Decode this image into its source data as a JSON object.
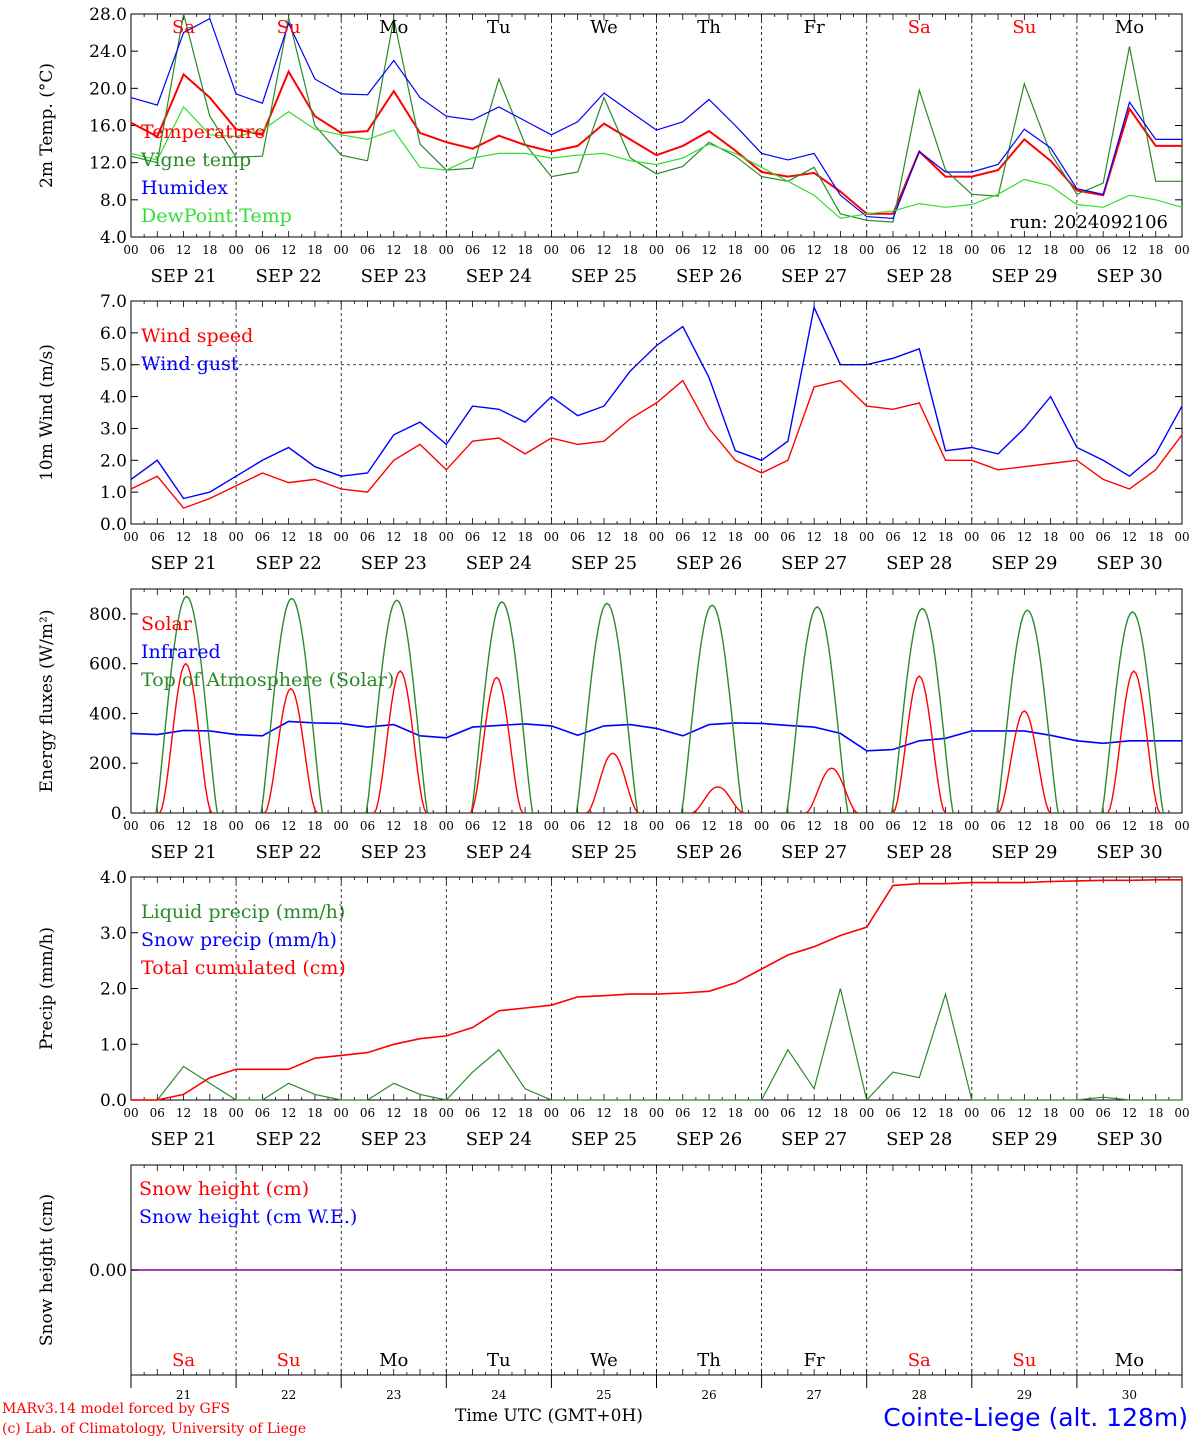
{
  "colors": {
    "red": "#ff0000",
    "green": "#2a8a2a",
    "blue": "#0000ff",
    "light_green": "#33dd33",
    "purple": "#8800aa",
    "axis": "#000000"
  },
  "days": [
    "SEP 21",
    "SEP 22",
    "SEP 23",
    "SEP 24",
    "SEP 25",
    "SEP 26",
    "SEP 27",
    "SEP 28",
    "SEP 29",
    "SEP 30"
  ],
  "hour_ticks": [
    "00",
    "06",
    "12",
    "18"
  ],
  "weekdays": [
    {
      "label": "Sa",
      "weekend": true
    },
    {
      "label": "Su",
      "weekend": true
    },
    {
      "label": "Mo",
      "weekend": false
    },
    {
      "label": "Tu",
      "weekend": false
    },
    {
      "label": "We",
      "weekend": false
    },
    {
      "label": "Th",
      "weekend": false
    },
    {
      "label": "Fr",
      "weekend": false
    },
    {
      "label": "Sa",
      "weekend": true
    },
    {
      "label": "Su",
      "weekend": true
    },
    {
      "label": "Mo",
      "weekend": false
    }
  ],
  "day_numbers": [
    "21",
    "22",
    "23",
    "24",
    "25",
    "26",
    "27",
    "28",
    "29",
    "30"
  ],
  "footer": {
    "model_line": "MARv3.14 model forced by GFS",
    "copyright": "(c) Lab. of Climatology, University of Liege",
    "xlabel": "Time UTC (GMT+0H)",
    "station": "Cointe-Liege (alt. 128m)"
  },
  "chart_data": [
    {
      "type": "line",
      "ylabel": "2m Temp. (°C)",
      "ylim": [
        4.0,
        28.0
      ],
      "yticks": [
        "4.0",
        "8.0",
        "12.0",
        "16.0",
        "20.0",
        "24.0",
        "28.0"
      ],
      "annotation": "run: 2024092106",
      "x_step_hours": 6,
      "series": [
        {
          "name": "Temperature",
          "color": "#ff0000",
          "values": [
            16.3,
            14.8,
            21.5,
            19.0,
            15.6,
            15.0,
            21.8,
            17.0,
            15.2,
            15.4,
            19.7,
            15.2,
            14.2,
            13.5,
            14.9,
            13.9,
            13.2,
            13.8,
            16.2,
            14.5,
            12.8,
            13.8,
            15.4,
            13.3,
            11.0,
            10.5,
            10.9,
            8.9,
            6.5,
            6.5,
            13.2,
            10.5,
            10.5,
            11.2,
            14.5,
            12.2,
            9.0,
            8.5,
            17.8,
            13.8,
            13.8
          ]
        },
        {
          "name": "Vigne temp",
          "color": "#2a8a2a",
          "values": [
            12.7,
            12.0,
            28.0,
            17.0,
            12.6,
            12.7,
            27.6,
            16.0,
            12.8,
            12.2,
            27.5,
            14.0,
            11.2,
            11.4,
            21.0,
            14.0,
            10.5,
            11.0,
            19.0,
            12.5,
            10.8,
            11.6,
            14.2,
            12.7,
            10.5,
            10.0,
            11.5,
            6.5,
            5.8,
            5.6,
            19.8,
            11.2,
            8.6,
            8.4,
            20.5,
            13.0,
            8.6,
            9.8,
            24.5,
            10.0,
            10.0
          ]
        },
        {
          "name": "Humidex",
          "color": "#0000ff",
          "values": [
            19.0,
            18.2,
            26.0,
            27.5,
            19.4,
            18.4,
            27.0,
            21.0,
            19.4,
            19.3,
            23.0,
            19.0,
            17.0,
            16.6,
            18.0,
            16.5,
            15.0,
            16.4,
            19.5,
            17.5,
            15.5,
            16.4,
            18.8,
            16.0,
            13.0,
            12.3,
            13.0,
            8.5,
            6.2,
            6.0,
            13.2,
            11.0,
            11.0,
            11.8,
            15.6,
            13.6,
            9.2,
            8.6,
            18.5,
            14.5,
            14.5
          ]
        },
        {
          "name": "DewPoint Temp",
          "color": "#33dd33",
          "values": [
            13.0,
            12.3,
            18.0,
            15.0,
            14.8,
            15.5,
            17.5,
            15.6,
            15.0,
            14.5,
            15.5,
            11.5,
            11.2,
            12.5,
            13.0,
            13.0,
            12.5,
            12.8,
            13.0,
            12.2,
            11.8,
            12.5,
            14.0,
            13.0,
            11.5,
            10.0,
            8.5,
            6.0,
            6.5,
            6.8,
            7.6,
            7.2,
            7.5,
            8.6,
            10.2,
            9.5,
            7.5,
            7.2,
            8.5,
            8.0,
            7.2
          ]
        }
      ]
    },
    {
      "type": "line",
      "ylabel": "10m Wind (m/s)",
      "ylim": [
        0.0,
        7.0
      ],
      "yticks": [
        "0.0",
        "1.0",
        "2.0",
        "3.0",
        "4.0",
        "5.0",
        "6.0",
        "7.0"
      ],
      "x_step_hours": 6,
      "series": [
        {
          "name": "Wind speed",
          "color": "#ff0000",
          "values": [
            1.1,
            1.5,
            0.5,
            0.8,
            1.2,
            1.6,
            1.3,
            1.4,
            1.1,
            1.0,
            2.0,
            2.5,
            1.7,
            2.6,
            2.7,
            2.2,
            2.7,
            2.5,
            2.6,
            3.3,
            3.8,
            4.5,
            3.0,
            2.0,
            1.6,
            2.0,
            4.3,
            4.5,
            3.7,
            3.6,
            3.8,
            2.0,
            2.0,
            1.7,
            1.8,
            1.9,
            2.0,
            1.4,
            1.1,
            1.7,
            2.8
          ]
        },
        {
          "name": "Wind gust",
          "color": "#0000ff",
          "values": [
            1.4,
            2.0,
            0.8,
            1.0,
            1.5,
            2.0,
            2.4,
            1.8,
            1.5,
            1.6,
            2.8,
            3.2,
            2.5,
            3.7,
            3.6,
            3.2,
            4.0,
            3.4,
            3.7,
            4.8,
            5.6,
            6.2,
            4.6,
            2.3,
            2.0,
            2.6,
            6.8,
            5.0,
            5.0,
            5.2,
            5.5,
            2.3,
            2.4,
            2.2,
            3.0,
            4.0,
            2.4,
            2.0,
            1.5,
            2.2,
            3.7
          ]
        },
        {
          "name": "",
          "color": "#000000",
          "dashed": true,
          "values": [
            5.0,
            5.0
          ]
        }
      ]
    },
    {
      "type": "line",
      "ylabel": "Energy fluxes (W/m²)",
      "ylim": [
        0,
        900
      ],
      "yticks": [
        "0.",
        "200.",
        "400.",
        "600.",
        "800."
      ],
      "series": [
        {
          "name": "Solar",
          "color": "#ff0000",
          "peaks": [
            [
              12.5,
              600
            ],
            [
              12.5,
              500
            ],
            [
              13.5,
              570
            ],
            [
              11.5,
              545
            ],
            [
              14,
              240
            ],
            [
              14,
              105
            ],
            [
              16,
              180
            ],
            [
              12,
              550
            ],
            [
              12,
              410
            ],
            [
              13,
              570
            ]
          ]
        },
        {
          "name": "Infrared",
          "color": "#0000ff",
          "values": [
            320,
            315,
            332,
            330,
            315,
            310,
            368,
            362,
            360,
            345,
            355,
            310,
            302,
            345,
            352,
            358,
            350,
            312,
            350,
            355,
            340,
            310,
            355,
            362,
            360,
            352,
            345,
            320,
            250,
            255,
            290,
            300,
            330,
            330,
            330,
            312,
            290,
            280,
            290,
            290,
            290
          ]
        },
        {
          "name": "Top of Atmosphere (Solar)",
          "color": "#2a8a2a",
          "peaks": [
            [
              12.7,
              870
            ],
            [
              12.7,
              862
            ],
            [
              12.7,
              855
            ],
            [
              12.7,
              848
            ],
            [
              12.7,
              842
            ],
            [
              12.7,
              835
            ],
            [
              12.7,
              828
            ],
            [
              12.7,
              822
            ],
            [
              12.7,
              815
            ],
            [
              12.7,
              808
            ]
          ]
        }
      ]
    },
    {
      "type": "line",
      "ylabel": "Precip (mm/h)",
      "ylim": [
        0.0,
        4.0
      ],
      "yticks": [
        "0.0",
        "1.0",
        "2.0",
        "3.0",
        "4.0"
      ],
      "x_step_hours": 6,
      "series": [
        {
          "name": "Liquid precip (mm/h)",
          "color": "#2a8a2a",
          "values": [
            0.0,
            0.0,
            0.6,
            0.3,
            0.0,
            0.0,
            0.3,
            0.1,
            0.0,
            0.0,
            0.3,
            0.1,
            0.0,
            0.5,
            0.9,
            0.2,
            0.0,
            0.0,
            0.0,
            0.0,
            0.0,
            0.0,
            0.0,
            0.0,
            0.0,
            0.9,
            0.2,
            2.0,
            0.0,
            0.5,
            0.4,
            1.9,
            0.0,
            0.0,
            0.0,
            0.0,
            0.0,
            0.05,
            0.0,
            0.0,
            0.0
          ]
        },
        {
          "name": "Snow precip (mm/h)",
          "color": "#0000ff",
          "values": []
        },
        {
          "name": "Total cumulated (cm)",
          "color": "#ff0000",
          "values": [
            0.0,
            0.0,
            0.1,
            0.4,
            0.55,
            0.55,
            0.55,
            0.75,
            0.8,
            0.85,
            1.0,
            1.1,
            1.15,
            1.3,
            1.6,
            1.65,
            1.7,
            1.85,
            1.87,
            1.9,
            1.9,
            1.92,
            1.95,
            2.1,
            2.35,
            2.6,
            2.75,
            2.95,
            3.1,
            3.85,
            3.88,
            3.88,
            3.9,
            3.9,
            3.9,
            3.92,
            3.93,
            3.94,
            3.94,
            3.95,
            3.95
          ]
        }
      ]
    },
    {
      "type": "line",
      "ylabel": "Snow height (cm)",
      "yticks": [
        "0.00"
      ],
      "series": [
        {
          "name": "Snow height (cm)",
          "color": "#ff0000",
          "values": [
            0,
            0
          ]
        },
        {
          "name": "Snow height (cm W.E.)",
          "color": "#0000ff",
          "values": [
            0,
            0
          ]
        }
      ]
    }
  ]
}
